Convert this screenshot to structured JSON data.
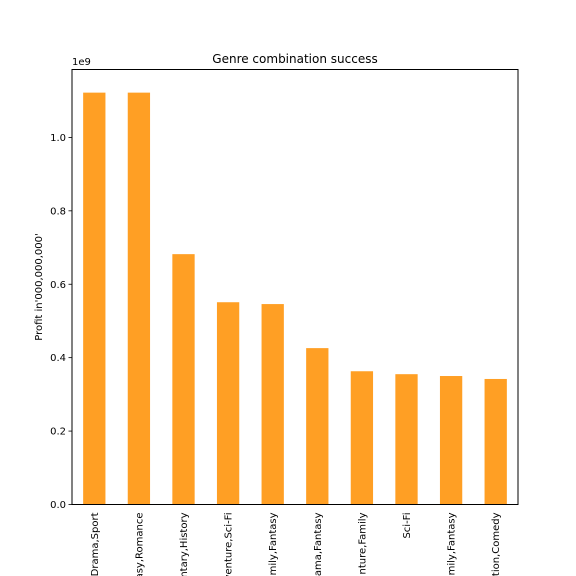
{
  "chart_data": {
    "type": "bar",
    "title": "Genre combination success",
    "xlabel": "",
    "ylabel": "Profit in'000,000,000'",
    "y_offset_label": "1e9",
    "y_ticks": [
      "0.0",
      "0.2",
      "0.4",
      "0.6",
      "0.8",
      "1.0"
    ],
    "ylim": [
      0,
      1.185
    ],
    "categories": [
      "Drama,Sport",
      "asy,Romance",
      "ntary,History",
      "venture,Sci-Fi",
      "mily,Fantasy",
      "ama,Fantasy",
      "nture,Family",
      "Sci-Fi",
      "mily,Fantasy",
      "tion,Comedy"
    ],
    "values": [
      1.122,
      1.122,
      0.682,
      0.551,
      0.546,
      0.426,
      0.363,
      0.355,
      0.35,
      0.342
    ],
    "bar_color": "#ff9f24",
    "grid": false,
    "legend": "none"
  }
}
